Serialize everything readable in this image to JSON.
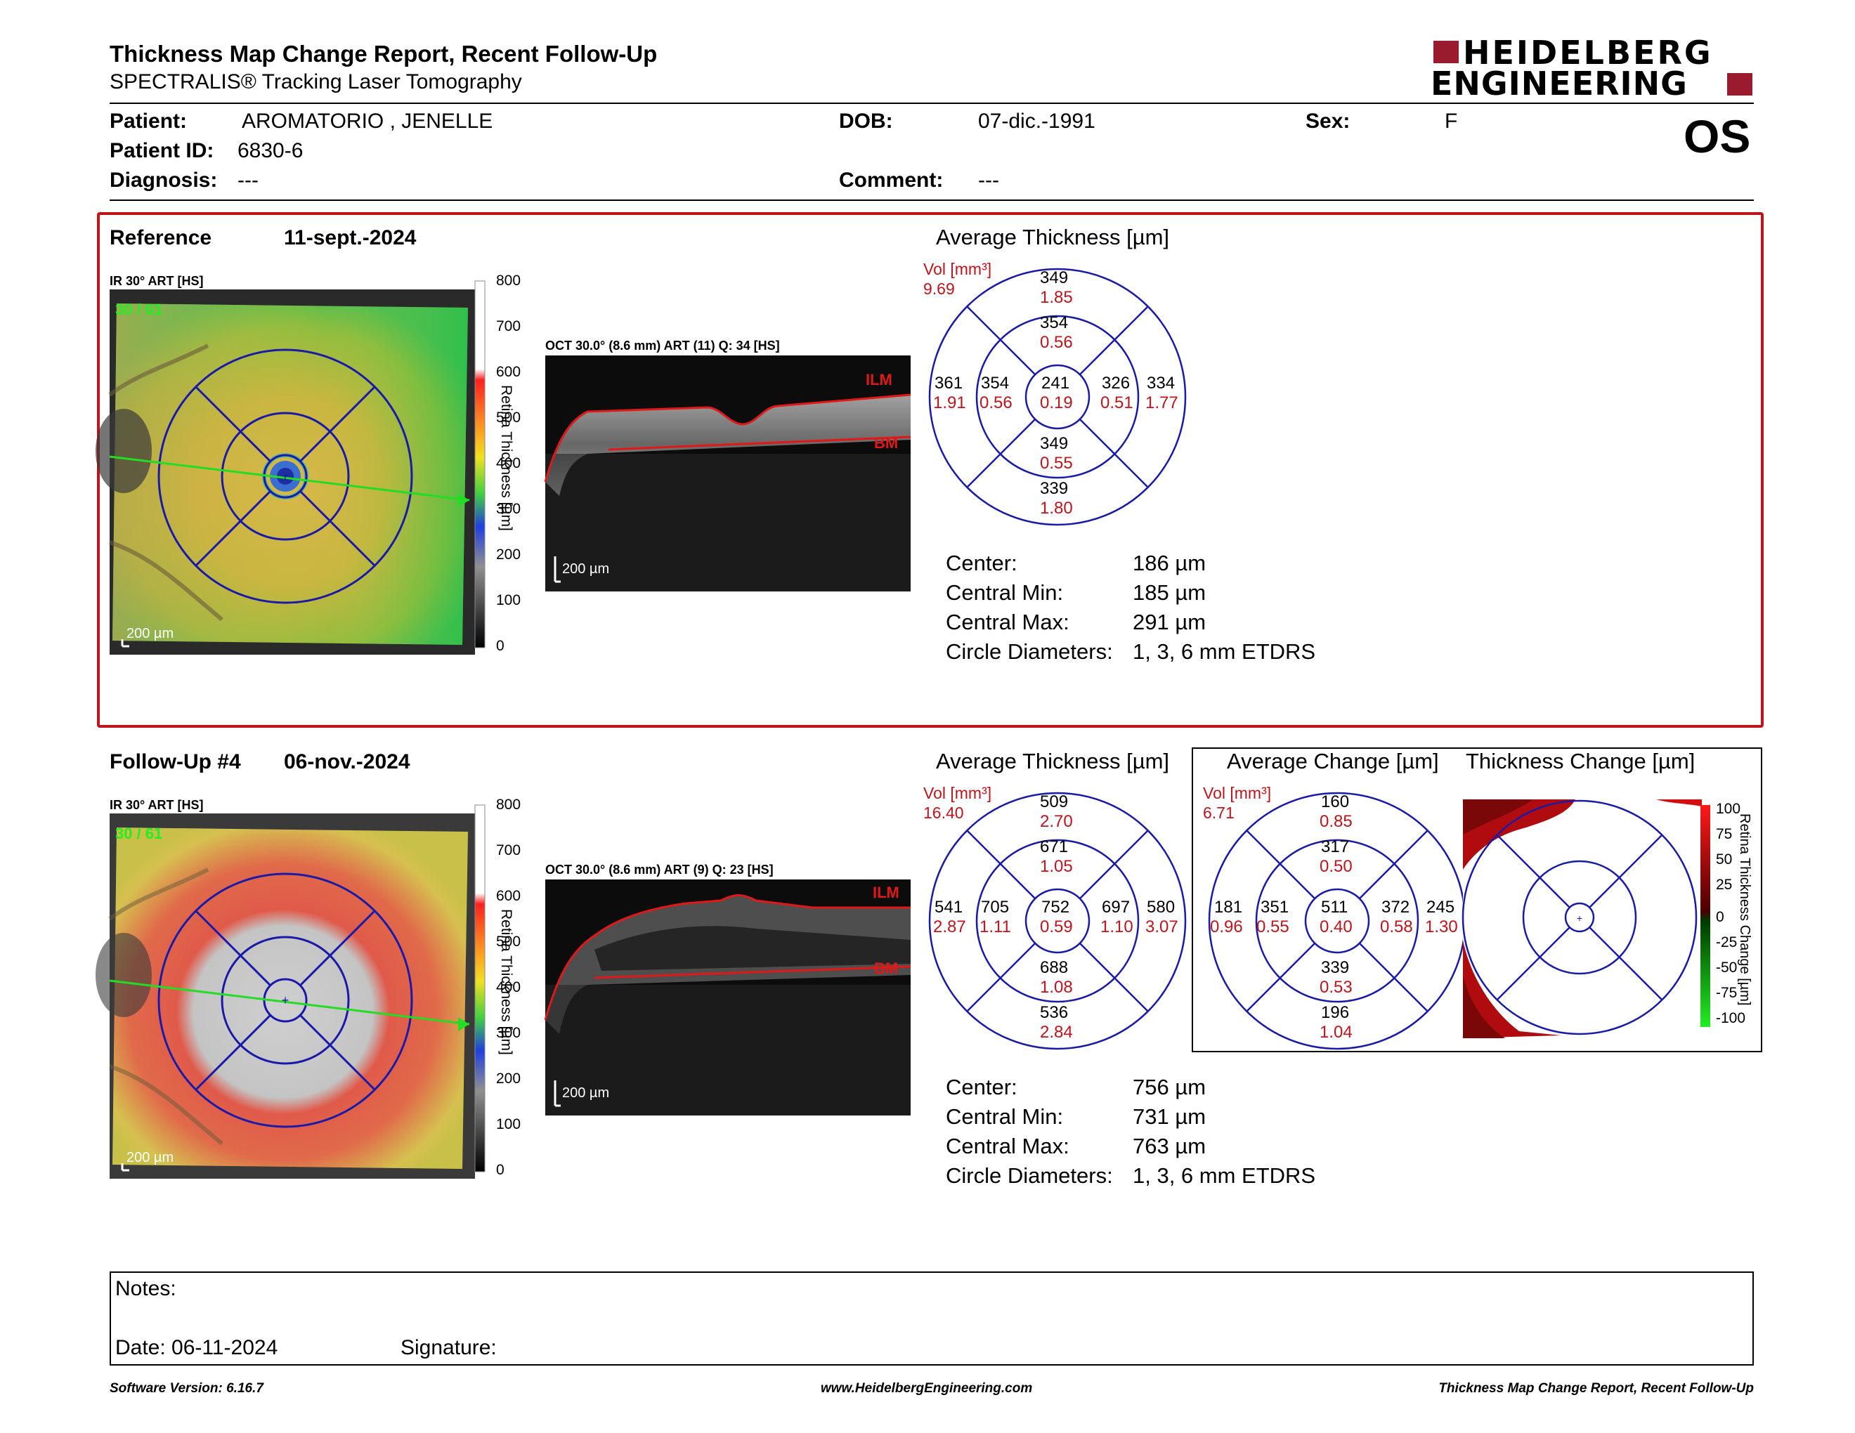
{
  "header": {
    "title": "Thickness Map Change Report, Recent Follow-Up",
    "subtitle": "SPECTRALIS® Tracking Laser Tomography",
    "logo_line1": "HEIDELBERG",
    "logo_line2": "ENGINEERING",
    "eye": "OS"
  },
  "patient": {
    "patient_label": "Patient:",
    "patient_name": "AROMATORIO , JENELLE",
    "dob_label": "DOB:",
    "dob": "07-dic.-1991",
    "sex_label": "Sex:",
    "sex": "F",
    "id_label": "Patient ID:",
    "id": "6830-6",
    "diagnosis_label": "Diagnosis:",
    "diagnosis": "---",
    "comment_label": "Comment:",
    "comment": "---"
  },
  "reference": {
    "label": "Reference",
    "date": "11-sept.-2024",
    "ir_label": "IR 30° ART [HS]",
    "ir_overlay": "30 / 61",
    "ir_scale": "200 µm",
    "oct_label": "OCT 30.0° (8.6 mm) ART (11) Q: 34 [HS]",
    "oct_scale": "200 µm",
    "ilm": "ILM",
    "bm": "BM",
    "colorbar_title": "Retina Thickness [µm]",
    "colorbar_ticks": [
      "800",
      "700",
      "600",
      "500",
      "400",
      "300",
      "200",
      "100",
      "0"
    ],
    "avg_title": "Average Thickness [µm]",
    "vol_label": "Vol [mm³]",
    "vol_total": "9.69",
    "grid": {
      "center": {
        "t": "241",
        "v": "0.19"
      },
      "inner_sup": {
        "t": "354",
        "v": "0.56"
      },
      "inner_inf": {
        "t": "349",
        "v": "0.55"
      },
      "inner_tem": {
        "t": "354",
        "v": "0.56"
      },
      "inner_nas": {
        "t": "326",
        "v": "0.51"
      },
      "outer_sup": {
        "t": "349",
        "v": "1.85"
      },
      "outer_inf": {
        "t": "339",
        "v": "1.80"
      },
      "outer_tem": {
        "t": "361",
        "v": "1.91"
      },
      "outer_nas": {
        "t": "334",
        "v": "1.77"
      }
    },
    "stats": {
      "center_label": "Center:",
      "center": "186 µm",
      "min_label": "Central Min:",
      "min": "185 µm",
      "max_label": "Central Max:",
      "max": "291 µm",
      "diam_label": "Circle Diameters:",
      "diam": "1, 3, 6 mm ETDRS"
    }
  },
  "followup": {
    "label": "Follow-Up #4",
    "date": "06-nov.-2024",
    "ir_label": "IR 30° ART [HS]",
    "ir_overlay": "30 / 61",
    "ir_scale": "200 µm",
    "oct_label": "OCT 30.0° (8.6 mm) ART (9) Q: 23 [HS]",
    "oct_scale": "200 µm",
    "ilm": "ILM",
    "bm": "BM",
    "colorbar_title": "Retina Thickness [µm]",
    "colorbar_ticks": [
      "800",
      "700",
      "600",
      "500",
      "400",
      "300",
      "200",
      "100",
      "0"
    ],
    "avg_title": "Average Thickness [µm]",
    "vol_label": "Vol [mm³]",
    "vol_total": "16.40",
    "grid": {
      "center": {
        "t": "752",
        "v": "0.59"
      },
      "inner_sup": {
        "t": "671",
        "v": "1.05"
      },
      "inner_inf": {
        "t": "688",
        "v": "1.08"
      },
      "inner_tem": {
        "t": "705",
        "v": "1.11"
      },
      "inner_nas": {
        "t": "697",
        "v": "1.10"
      },
      "outer_sup": {
        "t": "509",
        "v": "2.70"
      },
      "outer_inf": {
        "t": "536",
        "v": "2.84"
      },
      "outer_tem": {
        "t": "541",
        "v": "2.87"
      },
      "outer_nas": {
        "t": "580",
        "v": "3.07"
      }
    },
    "stats": {
      "center_label": "Center:",
      "center": "756 µm",
      "min_label": "Central Min:",
      "min": "731 µm",
      "max_label": "Central Max:",
      "max": "763 µm",
      "diam_label": "Circle Diameters:",
      "diam": "1, 3, 6 mm ETDRS"
    },
    "change_title": "Average Change [µm]",
    "change_vol_label": "Vol [mm³]",
    "change_vol_total": "6.71",
    "change_grid": {
      "center": {
        "t": "511",
        "v": "0.40"
      },
      "inner_sup": {
        "t": "317",
        "v": "0.50"
      },
      "inner_inf": {
        "t": "339",
        "v": "0.53"
      },
      "inner_tem": {
        "t": "351",
        "v": "0.55"
      },
      "inner_nas": {
        "t": "372",
        "v": "0.58"
      },
      "outer_sup": {
        "t": "160",
        "v": "0.85"
      },
      "outer_inf": {
        "t": "196",
        "v": "1.04"
      },
      "outer_tem": {
        "t": "181",
        "v": "0.96"
      },
      "outer_nas": {
        "t": "245",
        "v": "1.30"
      }
    },
    "thickness_change_title": "Thickness Change [µm]",
    "change_colorbar_title": "Retina Thickness Change [µm]",
    "change_colorbar_ticks": [
      "100",
      "75",
      "50",
      "25",
      "0",
      "-25",
      "-50",
      "-75",
      "-100"
    ]
  },
  "notes": {
    "notes_label": "Notes:",
    "date_label": "Date: 06-11-2024",
    "signature_label": "Signature:"
  },
  "footer": {
    "software": "Software Version: 6.16.7",
    "website": "www.HeidelbergEngineering.com",
    "report": "Thickness Map Change Report, Recent Follow-Up"
  },
  "colors": {
    "accent_red": "#c0141c",
    "grid_blue": "#1a1aa8",
    "scan_green": "#22dd22",
    "logo_red": "#9a1b2e"
  }
}
